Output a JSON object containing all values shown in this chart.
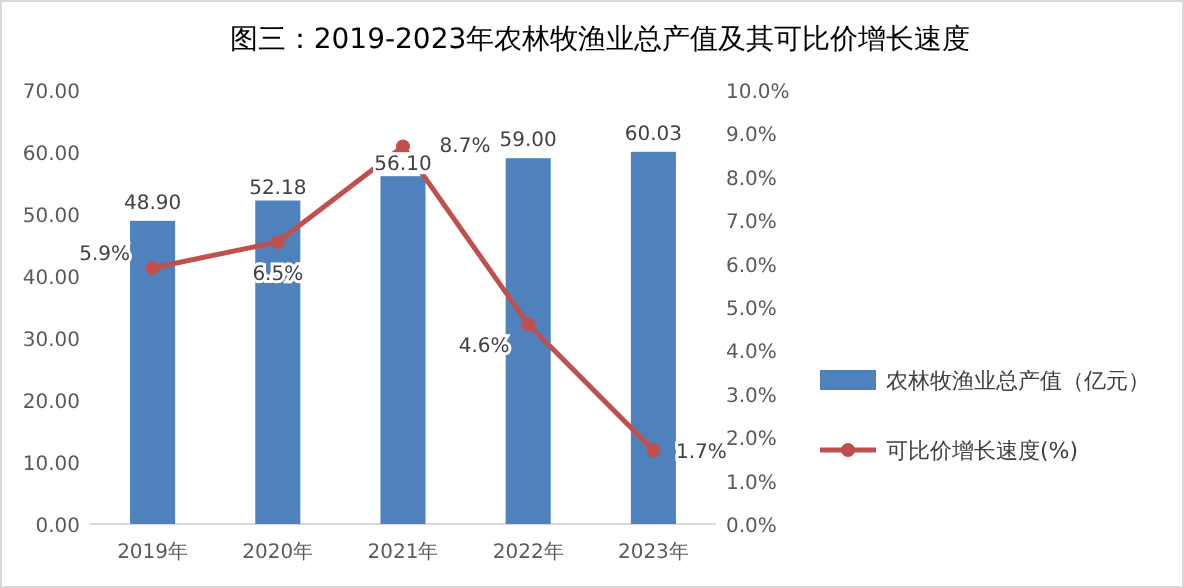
{
  "chart_data": {
    "type": "bar",
    "title": "图三：2019-2023年农林牧渔业总产值及其可比价增长速度",
    "categories": [
      "2019年",
      "2020年",
      "2021年",
      "2022年",
      "2023年"
    ],
    "series": [
      {
        "name": "农林牧渔业总产值（亿元）",
        "color": "#4f81bd",
        "values": [
          48.9,
          52.18,
          56.1,
          59.0,
          60.03
        ],
        "value_labels": [
          "48.90",
          "52.18",
          "56.10",
          "59.00",
          "60.03"
        ]
      },
      {
        "name": "可比价增长速度(%)",
        "type": "line",
        "axis": "y2",
        "color": "#c0504d",
        "marker": "circle",
        "values": [
          5.9,
          6.5,
          8.7,
          4.6,
          1.7
        ],
        "value_labels": [
          "5.9%",
          "6.5%",
          "8.7%",
          "4.6%",
          "1.7%"
        ]
      }
    ],
    "ylim": [
      0,
      70
    ],
    "yticks": [
      {
        "value": 0,
        "label": "0.00"
      },
      {
        "value": 10,
        "label": "10.00"
      },
      {
        "value": 20,
        "label": "20.00"
      },
      {
        "value": 30,
        "label": "30.00"
      },
      {
        "value": 40,
        "label": "40.00"
      },
      {
        "value": 50,
        "label": "50.00"
      },
      {
        "value": 60,
        "label": "60.00"
      },
      {
        "value": 70,
        "label": "70.00"
      }
    ],
    "y2lim": [
      0,
      10
    ],
    "y2ticks": [
      {
        "value": 0,
        "label": "0.0%"
      },
      {
        "value": 1,
        "label": "1.0%"
      },
      {
        "value": 2,
        "label": "2.0%"
      },
      {
        "value": 3,
        "label": "3.0%"
      },
      {
        "value": 4,
        "label": "4.0%"
      },
      {
        "value": 5,
        "label": "5.0%"
      },
      {
        "value": 6,
        "label": "6.0%"
      },
      {
        "value": 7,
        "label": "7.0%"
      },
      {
        "value": 8,
        "label": "8.0%"
      },
      {
        "value": 9,
        "label": "9.0%"
      },
      {
        "value": 10,
        "label": "10.0%"
      }
    ],
    "legend": "right"
  }
}
